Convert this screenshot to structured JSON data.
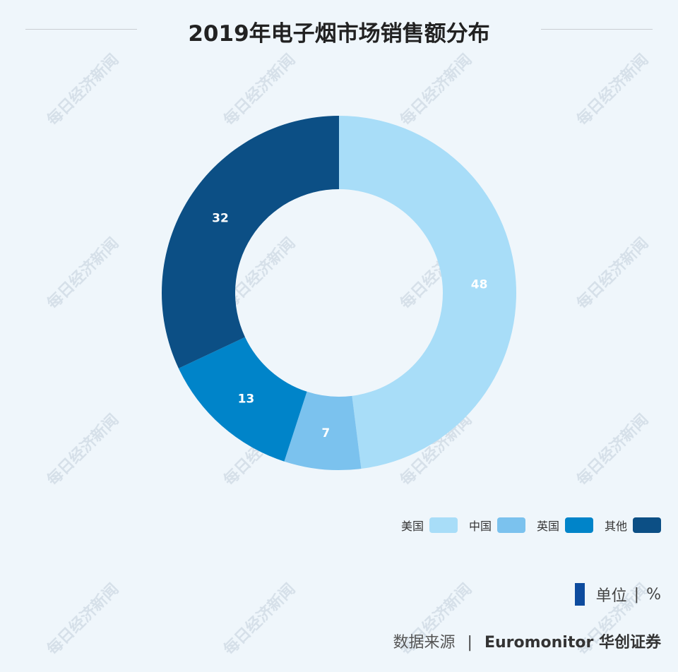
{
  "title": "2019年电子烟市场销售额分布",
  "chart_data": {
    "type": "pie",
    "style": "donut",
    "categories": [
      "美国",
      "中国",
      "英国",
      "其他"
    ],
    "values": [
      48,
      7,
      13,
      32
    ],
    "colors": [
      "#a8ddf8",
      "#7bc2ee",
      "#0084c9",
      "#0c4f85"
    ],
    "title": "2019年电子烟市场销售额分布",
    "legend": "bottom-right"
  },
  "unit": {
    "label": "单位",
    "value": "%"
  },
  "source": {
    "label": "数据来源",
    "value": "Euromonitor 华创证券"
  },
  "watermark": "每日经济新闻"
}
